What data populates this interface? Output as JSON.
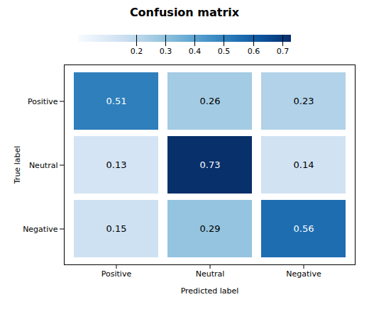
{
  "chart_data": {
    "type": "heatmap",
    "title": "Confusion matrix",
    "categories": [
      "Positive",
      "Neutral",
      "Negative"
    ],
    "values": [
      [
        0.51,
        0.26,
        0.23
      ],
      [
        0.13,
        0.73,
        0.14
      ],
      [
        0.15,
        0.29,
        0.56
      ]
    ],
    "xlabel": "Predicted label",
    "ylabel": "True label",
    "color": "Blues",
    "colorbar_lim": [
      0.0,
      0.73
    ],
    "colorbar_ticks": [
      0.2,
      0.3,
      0.4,
      0.5,
      0.6,
      0.7
    ],
    "data_labels": true
  }
}
